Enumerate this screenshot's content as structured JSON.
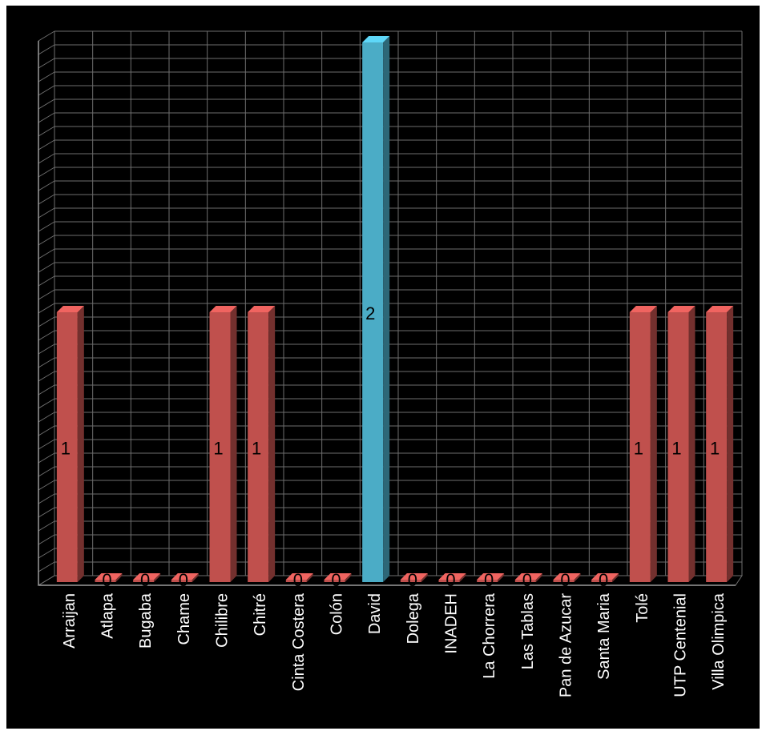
{
  "chart_data": {
    "type": "bar",
    "title": "",
    "xlabel": "",
    "ylabel": "",
    "ylim": [
      0,
      2
    ],
    "grid": true,
    "legend": "none",
    "categories": [
      "Arraijan",
      "Atlapa",
      "Bugaba",
      "Chame",
      "Chilibre",
      "Chitré",
      "Cinta Costera",
      "Colón",
      "David",
      "Dolega",
      "INADEH",
      "La Chorrera",
      "Las Tablas",
      "Pan de Azucar",
      "Santa Maria",
      "Tolé",
      "UTP Centenial",
      "Villa Olimpica"
    ],
    "values": [
      1,
      0,
      0,
      0,
      1,
      1,
      0,
      0,
      2,
      0,
      0,
      0,
      0,
      0,
      0,
      1,
      1,
      1
    ],
    "data_labels": [
      "1",
      "0",
      "0",
      "0",
      "1",
      "1",
      "0",
      "0",
      "2",
      "0",
      "0",
      "0",
      "0",
      "0",
      "0",
      "1",
      "1",
      "1"
    ],
    "colors": {
      "bar": "#c0504d",
      "bar_highlight": "#4bacc6",
      "background": "#000000",
      "grid": "#6e6e6e",
      "label": "#ffffff"
    },
    "highlight_index": 8
  }
}
